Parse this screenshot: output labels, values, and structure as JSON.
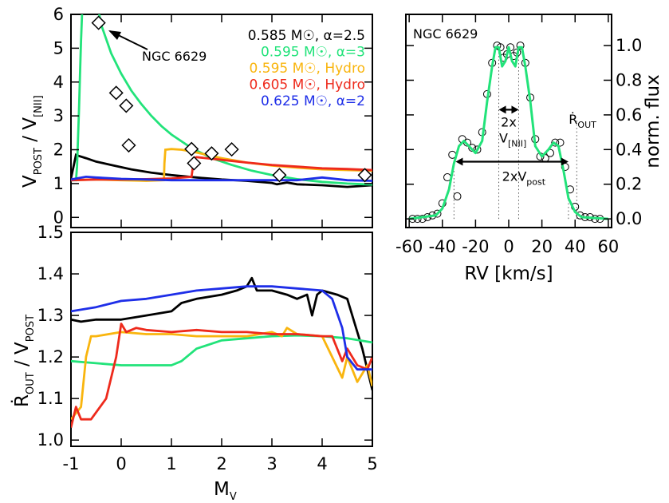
{
  "chart_data": [
    {
      "type": "line",
      "panel": "top-left",
      "xlim": [
        -1,
        5
      ],
      "ylim": [
        -0.3,
        6
      ],
      "yticks": [
        "0",
        "1",
        "2",
        "3",
        "4",
        "5",
        "6"
      ],
      "ylabel": {
        "main": "V",
        "sub1": "POST",
        "mid": " / V",
        "sub2": "[NII]"
      },
      "legend_placement": "top-right",
      "series": [
        {
          "name": "0.585 M☉, α=2.5",
          "color": "#000000",
          "x": [
            -1,
            -0.95,
            -0.9,
            -0.85,
            -0.7,
            -0.5,
            -0.2,
            0.2,
            0.6,
            1.0,
            1.5,
            2.0,
            2.5,
            3.0,
            3.1,
            3.3,
            3.5,
            4.0,
            4.5,
            5.0
          ],
          "y": [
            1.15,
            1.5,
            1.85,
            1.82,
            1.75,
            1.65,
            1.55,
            1.42,
            1.32,
            1.25,
            1.18,
            1.12,
            1.08,
            1.02,
            0.98,
            1.03,
            0.98,
            0.95,
            0.9,
            0.95
          ]
        },
        {
          "name": "0.595 M☉, α=3",
          "color": "#22e37a",
          "x": [
            -1,
            -0.9,
            -0.88,
            -0.86,
            -0.84,
            -0.82,
            -0.8,
            -0.77,
            -0.75,
            -0.6,
            -0.5,
            -0.4,
            -0.2,
            0.0,
            0.2,
            0.4,
            0.6,
            0.8,
            1.0,
            1.4,
            1.8,
            2.2,
            2.6,
            3.0,
            3.5,
            4.0,
            4.5,
            5.0
          ],
          "y": [
            1.1,
            1.1,
            1.5,
            2.3,
            3.2,
            4.2,
            5.2,
            6.4,
            7.0,
            7.0,
            6.5,
            5.7,
            4.85,
            4.25,
            3.75,
            3.35,
            3.0,
            2.7,
            2.45,
            2.05,
            1.75,
            1.55,
            1.38,
            1.25,
            1.13,
            1.05,
            1.0,
            0.97
          ]
        },
        {
          "name": "0.595 M☉, Hydro",
          "color": "#f9b50e",
          "x": [
            -1,
            -0.5,
            0,
            0.5,
            0.85,
            0.86,
            0.88,
            1.0,
            1.2,
            1.4,
            2.0,
            2.5,
            3.0,
            3.5,
            4.0,
            4.5,
            5.0
          ],
          "y": [
            1.1,
            1.12,
            1.1,
            1.08,
            1.1,
            1.6,
            2.0,
            2.02,
            2.0,
            1.95,
            1.75,
            1.62,
            1.53,
            1.47,
            1.42,
            1.4,
            1.38
          ]
        },
        {
          "name": "0.605 M☉, Hydro",
          "color": "#ee2a1c",
          "x": [
            -1,
            -0.5,
            0,
            0.5,
            1.0,
            1.4,
            1.45,
            1.5,
            2.0,
            2.5,
            3.0,
            3.5,
            4.0,
            4.5,
            5.0
          ],
          "y": [
            1.1,
            1.12,
            1.12,
            1.13,
            1.15,
            1.2,
            1.75,
            1.78,
            1.7,
            1.62,
            1.55,
            1.5,
            1.45,
            1.43,
            1.4
          ]
        },
        {
          "name": "0.625 M☉, α=2",
          "color": "#1e2ee8",
          "x": [
            -1,
            -0.7,
            -0.5,
            0,
            0.5,
            1.0,
            1.5,
            2.0,
            2.5,
            3.0,
            3.5,
            4.0,
            4.5,
            5.0
          ],
          "y": [
            1.12,
            1.2,
            1.18,
            1.14,
            1.12,
            1.1,
            1.1,
            1.1,
            1.1,
            1.1,
            1.1,
            1.18,
            1.1,
            1.08
          ]
        }
      ],
      "observations": {
        "label": "NGC 6629",
        "x": [
          -0.45,
          -0.1,
          0.1,
          0.15,
          1.4,
          1.45,
          1.8,
          2.2,
          3.15,
          4.85
        ],
        "y": [
          5.75,
          3.68,
          3.3,
          2.13,
          2.02,
          1.6,
          1.89,
          2.01,
          1.25,
          1.25
        ]
      }
    },
    {
      "type": "line",
      "panel": "bottom-left",
      "xlim": [
        -1,
        5
      ],
      "ylim": [
        0.985,
        1.5
      ],
      "xticks": [
        "-1",
        "0",
        "1",
        "2",
        "3",
        "4",
        "5"
      ],
      "yticks": [
        "1.0",
        "1.1",
        "1.2",
        "1.3",
        "1.4",
        "1.5"
      ],
      "xlabel": {
        "main": "M",
        "sub": "V"
      },
      "ylabel": {
        "main": "Ṙ",
        "sub1": "OUT",
        "mid": " / V",
        "sub2": "POST"
      },
      "series": [
        {
          "name": "0.585 M☉, α=2.5",
          "color": "#000000",
          "x": [
            -1,
            -0.8,
            -0.5,
            0,
            0.5,
            1.0,
            1.2,
            1.5,
            2.0,
            2.3,
            2.5,
            2.6,
            2.7,
            3.0,
            3.3,
            3.5,
            3.7,
            3.8,
            3.9,
            4.0,
            4.3,
            4.5,
            4.7,
            4.8,
            5.0
          ],
          "y": [
            1.29,
            1.285,
            1.29,
            1.29,
            1.3,
            1.31,
            1.33,
            1.34,
            1.35,
            1.36,
            1.37,
            1.39,
            1.36,
            1.36,
            1.35,
            1.34,
            1.35,
            1.3,
            1.35,
            1.36,
            1.35,
            1.34,
            1.26,
            1.22,
            1.12
          ]
        },
        {
          "name": "0.595 M☉, α=3",
          "color": "#22e37a",
          "x": [
            -1,
            -0.5,
            0,
            0.5,
            1.0,
            1.2,
            1.5,
            2.0,
            2.5,
            3.0,
            3.5,
            4.0,
            4.5,
            5.0
          ],
          "y": [
            1.19,
            1.185,
            1.18,
            1.18,
            1.18,
            1.19,
            1.22,
            1.24,
            1.245,
            1.25,
            1.252,
            1.25,
            1.245,
            1.235
          ]
        },
        {
          "name": "0.595 M☉, Hydro",
          "color": "#f9b50e",
          "x": [
            -1,
            -0.8,
            -0.7,
            -0.6,
            -0.5,
            0,
            0.5,
            1.0,
            1.5,
            2.0,
            2.5,
            3.0,
            3.2,
            3.3,
            3.5,
            4.0,
            4.2,
            4.4,
            4.5,
            4.6,
            4.7,
            4.9,
            5.0
          ],
          "y": [
            1.05,
            1.08,
            1.2,
            1.25,
            1.25,
            1.26,
            1.255,
            1.255,
            1.25,
            1.25,
            1.25,
            1.26,
            1.25,
            1.27,
            1.255,
            1.25,
            1.2,
            1.15,
            1.2,
            1.17,
            1.14,
            1.18,
            1.13
          ]
        },
        {
          "name": "0.605 M☉, Hydro",
          "color": "#ee2a1c",
          "x": [
            -1,
            -0.9,
            -0.8,
            -0.6,
            -0.3,
            -0.1,
            0.0,
            0.1,
            0.3,
            0.5,
            1.0,
            1.5,
            2.0,
            2.5,
            3.0,
            3.5,
            4.0,
            4.2,
            4.4,
            4.5,
            4.7,
            4.9,
            5.0
          ],
          "y": [
            1.03,
            1.08,
            1.05,
            1.05,
            1.1,
            1.2,
            1.28,
            1.26,
            1.27,
            1.265,
            1.26,
            1.265,
            1.26,
            1.26,
            1.255,
            1.255,
            1.25,
            1.25,
            1.19,
            1.22,
            1.18,
            1.17,
            1.2
          ]
        },
        {
          "name": "0.625 M☉, α=2",
          "color": "#1e2ee8",
          "x": [
            -1,
            -0.5,
            0,
            0.5,
            1.0,
            1.5,
            2.0,
            2.5,
            3.0,
            3.5,
            4.0,
            4.2,
            4.4,
            4.5,
            4.7,
            5.0
          ],
          "y": [
            1.31,
            1.32,
            1.335,
            1.34,
            1.35,
            1.36,
            1.365,
            1.37,
            1.37,
            1.365,
            1.36,
            1.34,
            1.27,
            1.2,
            1.17,
            1.17
          ]
        }
      ]
    },
    {
      "type": "line",
      "panel": "right",
      "title": "NGC 6629",
      "xlim": [
        -62,
        62
      ],
      "ylim": [
        -0.05,
        1.18
      ],
      "xticks": [
        "-60",
        "-40",
        "-20",
        "0",
        "20",
        "40",
        "60"
      ],
      "yticks": [
        "0.0",
        "0.2",
        "0.4",
        "0.6",
        "0.8",
        "1.0"
      ],
      "xlabel": "RV [km/s]",
      "ylabel": "norm. flux",
      "model": {
        "color": "#22e37a",
        "x": [
          -60,
          -44,
          -40,
          -36,
          -33,
          -30,
          -27,
          -24,
          -20,
          -16,
          -13,
          -10,
          -8,
          -6,
          -4,
          -2,
          0,
          2,
          4,
          6,
          8,
          10,
          13,
          16,
          20,
          24,
          27,
          30,
          33,
          36,
          40,
          44,
          60
        ],
        "y": [
          0,
          0.02,
          0.06,
          0.17,
          0.32,
          0.42,
          0.45,
          0.42,
          0.38,
          0.45,
          0.68,
          0.88,
          0.99,
          0.99,
          0.88,
          0.91,
          0.99,
          0.91,
          0.88,
          0.99,
          0.99,
          0.88,
          0.68,
          0.42,
          0.36,
          0.4,
          0.44,
          0.42,
          0.28,
          0.12,
          0.04,
          0.01,
          0
        ]
      },
      "observed": {
        "x": [
          -58,
          -55,
          -52,
          -49,
          -46,
          -43,
          -40,
          -37,
          -34,
          -31,
          -28,
          -25,
          -22,
          -19,
          -16,
          -13,
          -10,
          -7,
          -5,
          -3,
          -1,
          1,
          3,
          5,
          7,
          10,
          13,
          16,
          19,
          22,
          25,
          28,
          31,
          34,
          37,
          40,
          43,
          46,
          49,
          52,
          55
        ],
        "y": [
          0,
          0,
          0,
          0.01,
          0.02,
          0.03,
          0.09,
          0.24,
          0.37,
          0.13,
          0.46,
          0.44,
          0.41,
          0.4,
          0.5,
          0.72,
          0.9,
          1.0,
          0.99,
          0.93,
          0.95,
          0.99,
          0.94,
          0.96,
          1.0,
          0.9,
          0.7,
          0.46,
          0.36,
          0.35,
          0.38,
          0.44,
          0.44,
          0.3,
          0.17,
          0.07,
          0.02,
          0.01,
          0.01,
          0,
          0
        ]
      },
      "annotations": {
        "fwhm_label_top": "2x",
        "fwhm_label_main": "V",
        "fwhm_label_sub": "[NII]",
        "fwhm_from": -6,
        "fwhm_to": 6,
        "fwhm_y": 0.63,
        "post_label_main": "2xV",
        "post_label_sub": "post",
        "post_from": -32,
        "post_to": 36,
        "post_y": 0.33,
        "rout_label_main": "Ṙ",
        "rout_label_sub": "OUT",
        "rout_x": 41,
        "dotted_lines": [
          {
            "x": -33,
            "top": 0.28
          },
          {
            "x": -6,
            "top": 0.99
          },
          {
            "x": 6,
            "top": 0.99
          },
          {
            "x": 36,
            "top": 0.12
          },
          {
            "x": 41,
            "top": 0.57
          }
        ]
      }
    }
  ]
}
